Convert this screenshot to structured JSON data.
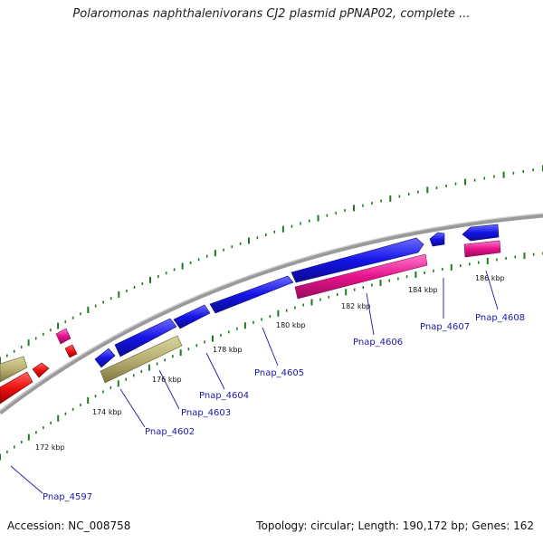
{
  "title": "Polaromonas naphthalenivorans CJ2 plasmid pPNAP02, complete ...",
  "footer": {
    "accession": "Accession: NC_008758",
    "topology": "Topology: circular; Length: 190,172 bp; Genes: 162"
  },
  "colors": {
    "backbone": "#8a8a8a",
    "tick": "#1f7a1f",
    "forward_gene": "#1414e6",
    "reverse_gene": "#e6128c",
    "other_gene": "#b8b070",
    "red_gene": "#ee1111",
    "label": "#1a1aa6"
  },
  "kbp_ticks": [
    "172 kbp",
    "174 kbp",
    "176 kbp",
    "178 kbp",
    "180 kbp",
    "182 kbp",
    "184 kbp",
    "186 kbp"
  ],
  "gene_labels": [
    "Pnap_4597",
    "Pnap_4602",
    "Pnap_4603",
    "Pnap_4604",
    "Pnap_4605",
    "Pnap_4606",
    "Pnap_4607",
    "Pnap_4608"
  ]
}
